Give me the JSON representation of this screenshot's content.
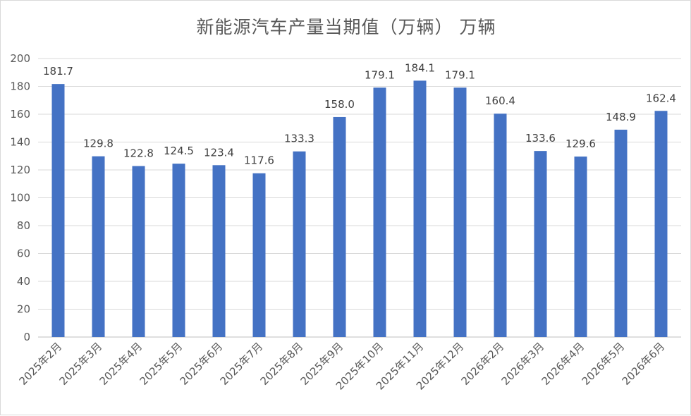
{
  "chart_data": {
    "type": "bar",
    "title": "新能源汽车产量当期值（万辆） 万辆",
    "xlabel": "",
    "ylabel": "",
    "ylim": [
      0,
      200
    ],
    "yticks": [
      0,
      20,
      40,
      60,
      80,
      100,
      120,
      140,
      160,
      180,
      200
    ],
    "grid": true,
    "legend": "none",
    "bar_color": "#4472C4",
    "categories": [
      "2025年2月",
      "2025年3月",
      "2025年4月",
      "2025年5月",
      "2025年6月",
      "2025年7月",
      "2025年8月",
      "2025年9月",
      "2025年10月",
      "2025年11月",
      "2025年12月",
      "2026年2月",
      "2026年3月",
      "2026年4月",
      "2026年5月",
      "2026年6月"
    ],
    "values": [
      181.7,
      129.8,
      122.8,
      124.5,
      123.4,
      117.6,
      133.3,
      158.0,
      179.1,
      184.1,
      179.1,
      160.4,
      133.6,
      129.6,
      148.9,
      162.4
    ],
    "data_labels": [
      "181.7",
      "129.8",
      "122.8",
      "124.5",
      "123.4",
      "117.6",
      "133.3",
      "158.0",
      "179.1",
      "184.1",
      "179.1",
      "160.4",
      "133.6",
      "129.6",
      "148.9",
      "162.4"
    ]
  }
}
